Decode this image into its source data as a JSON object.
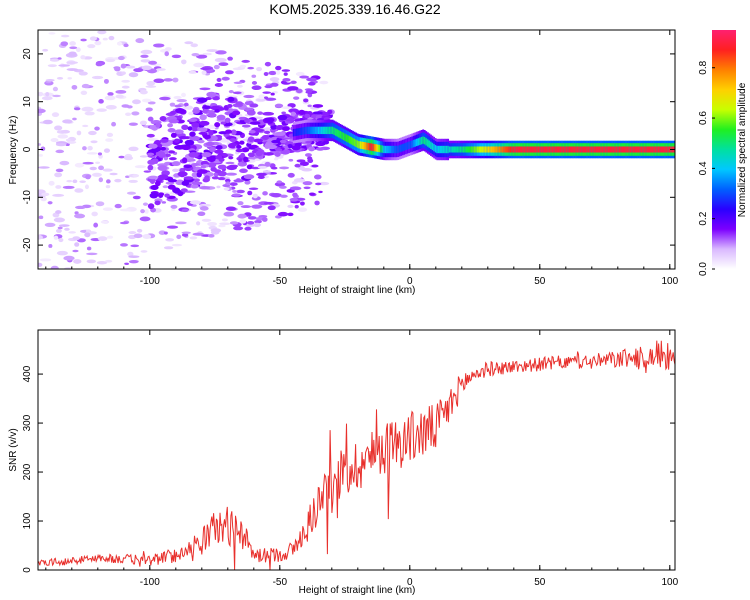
{
  "figure_title": "KOM5.2025.339.16.46.G22",
  "colors": {
    "snr_line": "#e8302c",
    "frame": "#000000",
    "colorbar": [
      "#ffffff",
      "#d9b8ff",
      "#7c00ff",
      "#2a00ff",
      "#0060ff",
      "#00c8ff",
      "#00e0a0",
      "#20f020",
      "#c8ff00",
      "#ffd000",
      "#ff8000",
      "#ff2020",
      "#ff2070"
    ]
  },
  "chart_data": [
    {
      "type": "heatmap",
      "name": "spectrogram",
      "xlabel": "Height of straight line (km)",
      "ylabel": "Frequency (Hz)",
      "xlim": [
        -143,
        102
      ],
      "ylim": [
        -25,
        25
      ],
      "xticks": [
        "-100",
        "-50",
        "0",
        "50",
        "100"
      ],
      "xtick_values": [
        -100,
        -50,
        0,
        50,
        100
      ],
      "yticks": [
        "-20",
        "-10",
        "0",
        "10",
        "20"
      ],
      "ytick_values": [
        -20,
        -10,
        0,
        10,
        20
      ],
      "colorbar": {
        "label": "Normalized spectral amplitude",
        "range": [
          0,
          0.95
        ],
        "ticks": [
          "0.0",
          "0.2",
          "0.4",
          "0.6",
          "0.8"
        ],
        "tick_values": [
          0,
          0.2,
          0.4,
          0.6,
          0.8
        ]
      },
      "ridge": {
        "description_points_x": [
          -75,
          -60,
          -50,
          -40,
          -30,
          -20,
          -15,
          -10,
          -5,
          0,
          5,
          10,
          20,
          40,
          60,
          80,
          100
        ],
        "frequency_hz": [
          3,
          2,
          3,
          4,
          4,
          1,
          0.5,
          0,
          0,
          1,
          2,
          0,
          0,
          0,
          0,
          0,
          0
        ],
        "amplitude": [
          0.15,
          0.15,
          0.2,
          0.3,
          0.5,
          0.6,
          0.9,
          0.4,
          0.3,
          0.3,
          0.5,
          0.4,
          0.5,
          0.9,
          0.9,
          0.9,
          0.9
        ]
      }
    },
    {
      "type": "line",
      "name": "snr",
      "xlabel": "Height of straight line (km)",
      "ylabel": "SNR (v/v)",
      "xlim": [
        -143,
        102
      ],
      "ylim": [
        0,
        490
      ],
      "xticks": [
        "-100",
        "-50",
        "0",
        "50",
        "100"
      ],
      "xtick_values": [
        -100,
        -50,
        0,
        50,
        100
      ],
      "yticks": [
        "0",
        "100",
        "200",
        "300",
        "400"
      ],
      "ytick_values": [
        0,
        100,
        200,
        300,
        400
      ],
      "series": [
        {
          "name": "SNR",
          "x": [
            -143,
            -130,
            -120,
            -110,
            -100,
            -90,
            -85,
            -80,
            -75,
            -70,
            -65,
            -60,
            -55,
            -50,
            -45,
            -40,
            -35,
            -30,
            -25,
            -20,
            -15,
            -10,
            -5,
            0,
            5,
            10,
            15,
            20,
            25,
            30,
            40,
            50,
            60,
            70,
            80,
            90,
            95,
            100,
            102
          ],
          "values": [
            15,
            18,
            25,
            22,
            20,
            30,
            45,
            60,
            85,
            90,
            80,
            30,
            30,
            32,
            40,
            80,
            140,
            180,
            200,
            215,
            230,
            250,
            260,
            270,
            280,
            290,
            330,
            380,
            400,
            410,
            415,
            420,
            425,
            425,
            430,
            435,
            440,
            440,
            435
          ],
          "noise_amplitude": [
            6,
            8,
            8,
            10,
            12,
            15,
            18,
            22,
            40,
            40,
            35,
            15,
            15,
            15,
            20,
            30,
            45,
            55,
            55,
            55,
            55,
            55,
            55,
            55,
            55,
            50,
            40,
            25,
            18,
            15,
            14,
            14,
            14,
            16,
            18,
            22,
            30,
            35,
            30
          ]
        }
      ]
    }
  ]
}
